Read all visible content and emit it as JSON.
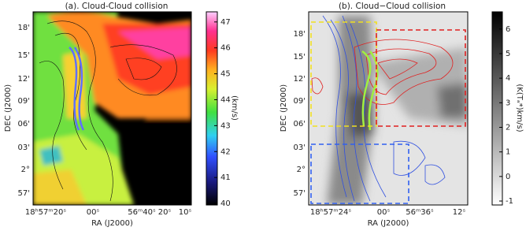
{
  "panels": [
    {
      "title": "(a). Cloud-Cloud collision",
      "x_label": "RA (J2000)",
      "y_label": "DEC (J2000)",
      "xticks": [
        "18ʰ57ᵐ20ˢ",
        "00ˢ",
        "56ᵐ40ˢ",
        "20ˢ",
        "10ˢ"
      ],
      "yticks": [
        "18'",
        "15'",
        "12'",
        "09'",
        "06'",
        "03'",
        "2°",
        "57'"
      ],
      "colorbar": {
        "label": "(km/s)",
        "lim": [
          39.94,
          47.39
        ],
        "ticks": [
          40,
          41,
          42,
          43,
          44,
          45,
          46,
          47
        ]
      }
    },
    {
      "title": "(b). Cloud−Cloud collision",
      "x_label": "RA (J2000)",
      "y_label": "DEC (J2000)",
      "xticks": [
        "18ʰ57ᵐ24ˢ",
        "00ˢ",
        "56ᵐ36ˢ",
        "12ˢ"
      ],
      "yticks": [
        "18'",
        "15'",
        "12'",
        "09'",
        "06'",
        "03'",
        "2°",
        "57'"
      ],
      "colorbar": {
        "label": "(K(Tₐ*)km/s)",
        "lim": [
          -1.16,
          6.7
        ],
        "ticks": [
          -1,
          0,
          1,
          2,
          3,
          4,
          5,
          6
        ]
      }
    }
  ]
}
